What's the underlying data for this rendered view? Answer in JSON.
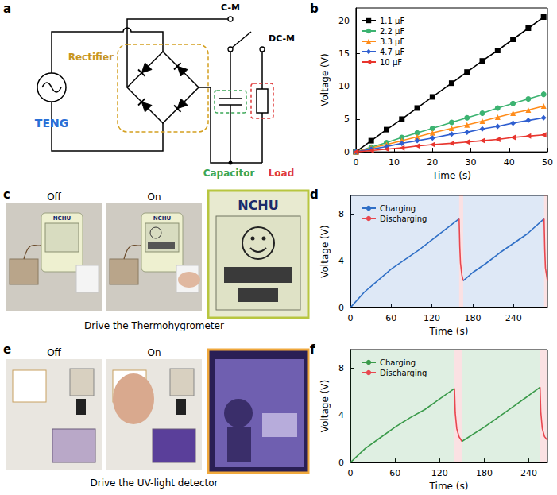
{
  "panel_labels": [
    "a",
    "b",
    "c",
    "d",
    "e",
    "f"
  ],
  "diagram": {
    "source": "TENG",
    "rectifier": "Rectifier",
    "switch_terminals": [
      "C-M",
      "DC-M"
    ],
    "capacitor": "Capacitor",
    "load": "Load"
  },
  "photos": {
    "c": {
      "states": [
        "Off",
        "On"
      ],
      "device_label": "NCHU",
      "caption": "Drive the Thermohygrometer"
    },
    "e": {
      "states": [
        "Off",
        "On"
      ],
      "caption": "Drive the UV-light detector"
    }
  },
  "chart_data": [
    {
      "type": "line",
      "x_label": "Time (s)",
      "y_label": "Voltage (V)",
      "x": [
        0,
        4,
        8,
        12,
        16,
        20,
        25,
        29,
        33,
        37,
        41,
        45,
        49
      ],
      "xlim": [
        0,
        50
      ],
      "xticks": [
        0,
        10,
        20,
        30,
        40,
        50
      ],
      "ylim": [
        0,
        22
      ],
      "yticks": [
        0,
        5,
        10,
        15,
        20
      ],
      "grid": false,
      "legend": "upper left",
      "series": [
        {
          "name": "1.1 μF",
          "color": "#000000",
          "marker": "square",
          "values": [
            0,
            1.7,
            3.4,
            5.0,
            6.7,
            8.4,
            10.5,
            12.2,
            13.9,
            15.5,
            17.2,
            18.9,
            20.6
          ]
        },
        {
          "name": "2.2 μF",
          "color": "#3cb371",
          "marker": "circle",
          "values": [
            0,
            0.7,
            1.4,
            2.2,
            2.9,
            3.6,
            4.5,
            5.2,
            5.9,
            6.7,
            7.4,
            8.1,
            8.8
          ]
        },
        {
          "name": "3.3 μF",
          "color": "#ff8c1a",
          "marker": "triangle",
          "values": [
            0,
            0.6,
            1.1,
            1.7,
            2.3,
            2.9,
            3.6,
            4.1,
            4.7,
            5.3,
            5.9,
            6.4,
            7.0
          ]
        },
        {
          "name": "4.7 μF",
          "color": "#2f5fd0",
          "marker": "diamond",
          "values": [
            0,
            0.4,
            0.8,
            1.3,
            1.7,
            2.1,
            2.7,
            3.0,
            3.5,
            3.9,
            4.4,
            4.8,
            5.2
          ]
        },
        {
          "name": "10 μF",
          "color": "#e8352e",
          "marker": "triangle-left",
          "values": [
            0,
            0.2,
            0.4,
            0.6,
            0.9,
            1.1,
            1.3,
            1.5,
            1.7,
            1.9,
            2.2,
            2.4,
            2.6
          ]
        }
      ]
    },
    {
      "type": "line",
      "x_label": "Time (s)",
      "y_label": "Voltage (V)",
      "xlim": [
        0,
        290
      ],
      "xticks": [
        0,
        60,
        120,
        180,
        240
      ],
      "ylim": [
        0,
        9.6
      ],
      "yticks": [
        0,
        4,
        8
      ],
      "grid": false,
      "legend": "upper left",
      "series": [
        {
          "name": "Charging",
          "color": "#2f6fc6",
          "x": [
            0,
            20,
            40,
            60,
            80,
            100,
            120,
            140,
            160,
            163,
            166,
            180,
            200,
            220,
            240,
            260,
            285
          ],
          "values": [
            0,
            1.3,
            2.3,
            3.3,
            4.1,
            4.9,
            5.8,
            6.7,
            7.6,
            null,
            2.3,
            3.0,
            3.8,
            4.7,
            5.5,
            6.3,
            7.6
          ],
          "regions": [
            [
              0,
              160
            ],
            [
              166,
              285
            ]
          ]
        },
        {
          "name": "Discharging",
          "color": "#e8474f",
          "x": [
            160,
            161,
            162,
            164,
            166,
            200,
            285,
            286,
            287,
            290
          ],
          "values": [
            7.6,
            5.2,
            3.8,
            2.8,
            2.3,
            null,
            7.6,
            5.0,
            3.4,
            2.3
          ],
          "regions": [
            [
              160,
              166
            ],
            [
              285,
              290
            ]
          ]
        }
      ]
    },
    {
      "type": "line",
      "x_label": "Time (s)",
      "y_label": "Voltage (V)",
      "xlim": [
        0,
        265
      ],
      "xticks": [
        0,
        60,
        120,
        180,
        240
      ],
      "ylim": [
        0,
        9.6
      ],
      "yticks": [
        0,
        4,
        8
      ],
      "grid": false,
      "legend": "upper left",
      "series": [
        {
          "name": "Charging",
          "color": "#3a9a4a",
          "x": [
            0,
            20,
            40,
            60,
            80,
            100,
            120,
            140,
            145,
            150,
            160,
            180,
            200,
            220,
            240,
            255
          ],
          "values": [
            0,
            1.2,
            2.1,
            3.0,
            3.8,
            4.5,
            5.4,
            6.3,
            null,
            1.8,
            2.2,
            3.0,
            3.9,
            4.8,
            5.7,
            6.4
          ],
          "regions": [
            [
              0,
              140
            ],
            [
              150,
              255
            ]
          ]
        },
        {
          "name": "Discharging",
          "color": "#e8474f",
          "x": [
            140,
            141,
            143,
            146,
            150,
            200,
            255,
            256,
            258,
            261,
            265
          ],
          "values": [
            6.3,
            4.2,
            2.9,
            2.2,
            1.8,
            null,
            6.4,
            4.3,
            2.9,
            2.2,
            1.9
          ],
          "regions": [
            [
              140,
              150
            ],
            [
              255,
              265
            ]
          ]
        }
      ]
    }
  ]
}
